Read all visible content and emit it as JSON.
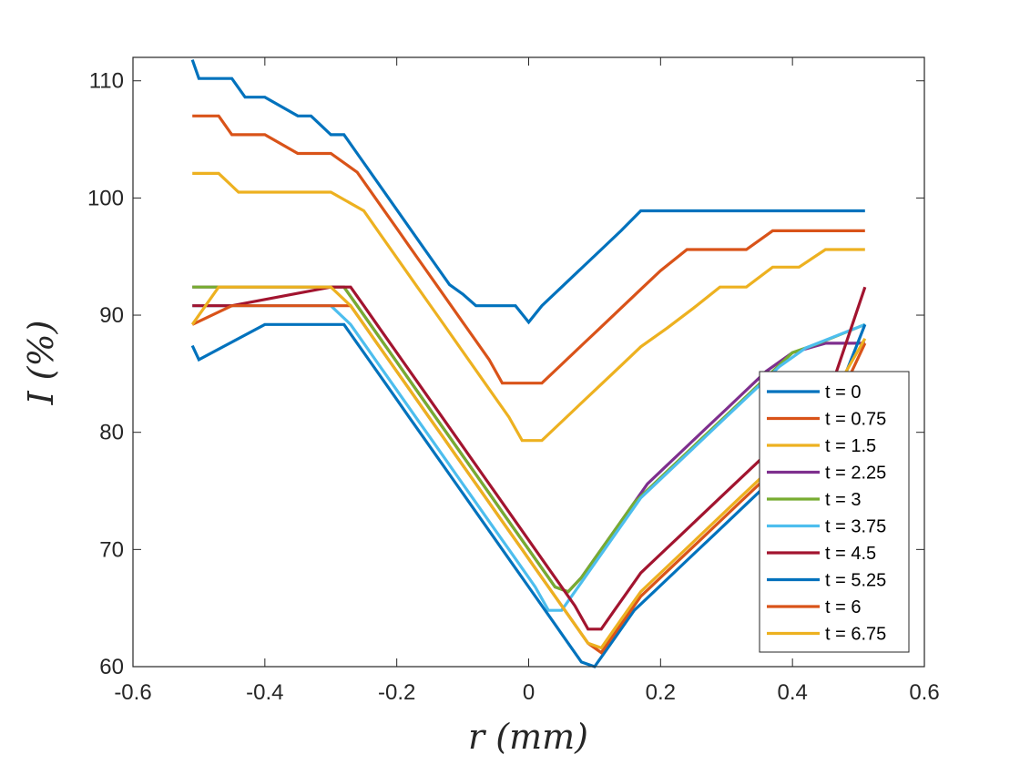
{
  "chart_data": {
    "type": "line",
    "xlabel": "r (mm)",
    "ylabel": "I (%)",
    "xlim": [
      -0.6,
      0.6
    ],
    "ylim": [
      60,
      112
    ],
    "xticks": [
      -0.6,
      -0.4,
      -0.2,
      0,
      0.2,
      0.4,
      0.6
    ],
    "xtick_labels": [
      "-0.6",
      "-0.4",
      "-0.2",
      "0",
      "0.2",
      "0.4",
      "0.6"
    ],
    "yticks": [
      60,
      70,
      80,
      90,
      100,
      110
    ],
    "ytick_labels": [
      "60",
      "70",
      "80",
      "90",
      "100",
      "110"
    ],
    "legend_position": "bottom-right",
    "grid": false,
    "series": [
      {
        "name": "t = 0",
        "color": "#0072BD",
        "x": [
          -0.51,
          -0.5,
          -0.45,
          -0.43,
          -0.4,
          -0.35,
          -0.33,
          -0.3,
          -0.28,
          -0.26,
          -0.24,
          -0.22,
          -0.2,
          -0.18,
          -0.16,
          -0.14,
          -0.12,
          -0.1,
          -0.08,
          -0.05,
          -0.02,
          0,
          0.02,
          0.05,
          0.08,
          0.11,
          0.14,
          0.17,
          0.2,
          0.3,
          0.4,
          0.51
        ],
        "y": [
          111.8,
          110.2,
          110.2,
          108.6,
          108.6,
          107.0,
          107.0,
          105.4,
          105.4,
          103.8,
          102.2,
          100.6,
          99.0,
          97.4,
          95.8,
          94.2,
          92.6,
          91.8,
          90.8,
          90.8,
          90.8,
          89.4,
          90.8,
          92.4,
          94.0,
          95.6,
          97.2,
          98.9,
          98.9,
          98.9,
          98.9,
          98.9
        ]
      },
      {
        "name": "t = 0.75",
        "color": "#D95319",
        "x": [
          -0.51,
          -0.47,
          -0.45,
          -0.4,
          -0.35,
          -0.3,
          -0.26,
          -0.24,
          -0.22,
          -0.2,
          -0.18,
          -0.16,
          -0.14,
          -0.12,
          -0.1,
          -0.08,
          -0.06,
          -0.04,
          -0.02,
          0,
          0.02,
          0.05,
          0.08,
          0.11,
          0.14,
          0.17,
          0.2,
          0.24,
          0.28,
          0.33,
          0.37,
          0.38,
          0.42,
          0.51
        ],
        "y": [
          107.0,
          107.0,
          105.4,
          105.4,
          103.8,
          103.8,
          102.2,
          100.6,
          99.0,
          97.4,
          95.8,
          94.2,
          92.6,
          91.0,
          89.4,
          87.8,
          86.2,
          84.2,
          84.2,
          84.2,
          84.2,
          85.8,
          87.4,
          89.0,
          90.6,
          92.2,
          93.8,
          95.6,
          95.6,
          95.6,
          97.2,
          97.2,
          97.2,
          97.2
        ]
      },
      {
        "name": "t = 1.5",
        "color": "#EDB120",
        "x": [
          -0.51,
          -0.47,
          -0.44,
          -0.3,
          -0.25,
          -0.23,
          -0.21,
          -0.19,
          -0.17,
          -0.15,
          -0.13,
          -0.11,
          -0.09,
          -0.07,
          -0.05,
          -0.03,
          -0.01,
          0,
          0.02,
          0.05,
          0.08,
          0.11,
          0.14,
          0.17,
          0.21,
          0.25,
          0.29,
          0.33,
          0.37,
          0.41,
          0.45,
          0.51
        ],
        "y": [
          102.1,
          102.1,
          100.5,
          100.5,
          98.9,
          97.3,
          95.7,
          94.1,
          92.5,
          90.9,
          89.3,
          87.7,
          86.1,
          84.5,
          82.9,
          81.3,
          79.3,
          79.3,
          79.3,
          80.9,
          82.5,
          84.1,
          85.7,
          87.3,
          88.9,
          90.6,
          92.4,
          92.4,
          94.1,
          94.1,
          95.6,
          95.6
        ]
      },
      {
        "name": "t = 2.25",
        "color": "#7E2F8E",
        "x": [
          -0.51,
          -0.45,
          -0.35,
          -0.28,
          -0.26,
          -0.24,
          -0.22,
          -0.2,
          -0.18,
          -0.16,
          -0.14,
          -0.12,
          -0.1,
          -0.08,
          -0.06,
          -0.04,
          -0.02,
          0,
          0.02,
          0.04,
          0.06,
          0.08,
          0.1,
          0.12,
          0.14,
          0.16,
          0.18,
          0.21,
          0.24,
          0.27,
          0.3,
          0.33,
          0.36,
          0.4,
          0.45,
          0.51
        ],
        "y": [
          92.4,
          92.4,
          92.4,
          92.4,
          90.8,
          89.2,
          87.6,
          86.0,
          84.4,
          82.8,
          81.2,
          79.6,
          78.0,
          76.4,
          74.8,
          73.2,
          71.6,
          70.0,
          68.4,
          66.8,
          66.4,
          67.6,
          69.2,
          70.8,
          72.4,
          74.0,
          75.6,
          77.2,
          78.8,
          80.4,
          82.0,
          83.6,
          85.2,
          86.8,
          87.6,
          87.6
        ]
      },
      {
        "name": "t = 3",
        "color": "#77AC30",
        "x": [
          -0.51,
          -0.45,
          -0.33,
          -0.28,
          -0.26,
          -0.24,
          -0.22,
          -0.2,
          -0.18,
          -0.16,
          -0.14,
          -0.12,
          -0.1,
          -0.08,
          -0.06,
          -0.04,
          -0.02,
          0,
          0.02,
          0.04,
          0.06,
          0.08,
          0.1,
          0.12,
          0.14,
          0.16,
          0.19,
          0.22,
          0.25,
          0.28,
          0.31,
          0.34,
          0.37,
          0.4,
          0.44,
          0.51
        ],
        "y": [
          92.4,
          92.4,
          92.4,
          92.4,
          90.8,
          89.2,
          87.6,
          86.0,
          84.4,
          82.8,
          81.2,
          79.6,
          78.0,
          76.4,
          74.8,
          73.2,
          71.6,
          70.0,
          68.4,
          66.8,
          66.4,
          67.6,
          69.2,
          70.8,
          72.4,
          74.0,
          75.6,
          77.2,
          78.8,
          80.4,
          82.0,
          83.6,
          85.2,
          86.8,
          87.6,
          89.2
        ]
      },
      {
        "name": "t = 3.75",
        "color": "#4DBEEE",
        "x": [
          -0.51,
          -0.4,
          -0.32,
          -0.3,
          -0.27,
          -0.25,
          -0.23,
          -0.21,
          -0.19,
          -0.17,
          -0.15,
          -0.13,
          -0.11,
          -0.09,
          -0.07,
          -0.05,
          -0.03,
          -0.01,
          0.01,
          0.03,
          0.05,
          0.07,
          0.09,
          0.11,
          0.13,
          0.15,
          0.17,
          0.2,
          0.23,
          0.26,
          0.29,
          0.32,
          0.35,
          0.38,
          0.42,
          0.51
        ],
        "y": [
          90.8,
          90.8,
          90.8,
          90.8,
          89.2,
          87.6,
          86.0,
          84.4,
          82.8,
          81.2,
          79.6,
          78.0,
          76.4,
          74.8,
          73.2,
          71.6,
          70.0,
          68.4,
          66.8,
          64.8,
          64.8,
          66.4,
          68.0,
          69.6,
          71.2,
          72.8,
          74.4,
          76.0,
          77.6,
          79.2,
          80.8,
          82.4,
          84.0,
          85.6,
          87.2,
          89.2
        ]
      },
      {
        "name": "t = 4.5",
        "color": "#A2142F",
        "x": [
          -0.51,
          -0.45,
          -0.3,
          -0.27,
          -0.25,
          -0.23,
          -0.21,
          -0.19,
          -0.17,
          -0.15,
          -0.13,
          -0.11,
          -0.09,
          -0.07,
          -0.05,
          -0.03,
          -0.01,
          0.01,
          0.03,
          0.05,
          0.07,
          0.09,
          0.11,
          0.13,
          0.15,
          0.17,
          0.2,
          0.23,
          0.26,
          0.29,
          0.32,
          0.35,
          0.38,
          0.41,
          0.45,
          0.51
        ],
        "y": [
          90.8,
          90.8,
          92.4,
          92.4,
          90.8,
          89.2,
          87.6,
          86.0,
          84.4,
          82.8,
          81.2,
          79.6,
          78.0,
          76.4,
          74.8,
          73.2,
          71.6,
          70.0,
          68.4,
          66.8,
          65.2,
          63.2,
          63.2,
          64.8,
          66.4,
          68.0,
          69.6,
          71.2,
          72.8,
          74.4,
          76.0,
          77.6,
          79.2,
          80.8,
          82.4,
          92.4
        ]
      },
      {
        "name": "t = 5.25",
        "color": "#0072BD",
        "x": [
          -0.51,
          -0.5,
          -0.4,
          -0.28,
          -0.26,
          -0.24,
          -0.22,
          -0.2,
          -0.18,
          -0.16,
          -0.14,
          -0.12,
          -0.1,
          -0.08,
          -0.06,
          -0.04,
          -0.02,
          0,
          0.02,
          0.04,
          0.06,
          0.08,
          0.1,
          0.12,
          0.14,
          0.16,
          0.19,
          0.22,
          0.25,
          0.28,
          0.31,
          0.34,
          0.37,
          0.4,
          0.44,
          0.51
        ],
        "y": [
          87.4,
          86.2,
          89.2,
          89.2,
          87.6,
          86.0,
          84.4,
          82.8,
          81.2,
          79.6,
          78.0,
          76.4,
          74.8,
          73.2,
          71.6,
          70.0,
          68.4,
          66.8,
          65.2,
          63.6,
          62.0,
          60.4,
          60.0,
          61.6,
          63.2,
          64.8,
          66.4,
          68.0,
          69.6,
          71.2,
          72.8,
          74.4,
          76.0,
          77.6,
          79.2,
          89.2
        ]
      },
      {
        "name": "t = 6",
        "color": "#D95319",
        "x": [
          -0.51,
          -0.45,
          -0.3,
          -0.27,
          -0.25,
          -0.23,
          -0.21,
          -0.19,
          -0.17,
          -0.15,
          -0.13,
          -0.11,
          -0.09,
          -0.07,
          -0.05,
          -0.03,
          -0.01,
          0.01,
          0.03,
          0.05,
          0.07,
          0.09,
          0.11,
          0.13,
          0.15,
          0.17,
          0.2,
          0.23,
          0.26,
          0.29,
          0.32,
          0.35,
          0.38,
          0.41,
          0.45,
          0.51
        ],
        "y": [
          89.2,
          90.8,
          90.8,
          90.8,
          89.2,
          87.6,
          86.0,
          84.4,
          82.8,
          81.2,
          79.6,
          78.0,
          76.4,
          74.8,
          73.2,
          71.6,
          70.0,
          68.4,
          66.8,
          65.2,
          63.6,
          62.0,
          61.2,
          62.8,
          64.4,
          66.0,
          67.6,
          69.2,
          70.8,
          72.4,
          74.0,
          75.6,
          77.2,
          78.8,
          80.4,
          87.6
        ]
      },
      {
        "name": "t = 6.75",
        "color": "#EDB120",
        "x": [
          -0.51,
          -0.47,
          -0.42,
          -0.3,
          -0.27,
          -0.25,
          -0.23,
          -0.21,
          -0.19,
          -0.17,
          -0.15,
          -0.13,
          -0.11,
          -0.09,
          -0.07,
          -0.05,
          -0.03,
          -0.01,
          0.01,
          0.03,
          0.05,
          0.07,
          0.09,
          0.11,
          0.13,
          0.15,
          0.17,
          0.2,
          0.23,
          0.26,
          0.29,
          0.32,
          0.35,
          0.38,
          0.42,
          0.51
        ],
        "y": [
          89.2,
          92.4,
          92.4,
          92.4,
          90.8,
          89.2,
          87.6,
          86.0,
          84.4,
          82.8,
          81.2,
          79.6,
          78.0,
          76.4,
          74.8,
          73.2,
          71.6,
          70.0,
          68.4,
          66.8,
          65.2,
          63.6,
          62.0,
          61.6,
          63.2,
          64.8,
          66.4,
          68.0,
          69.6,
          71.2,
          72.8,
          74.4,
          76.0,
          77.6,
          79.2,
          88.0
        ]
      }
    ]
  }
}
